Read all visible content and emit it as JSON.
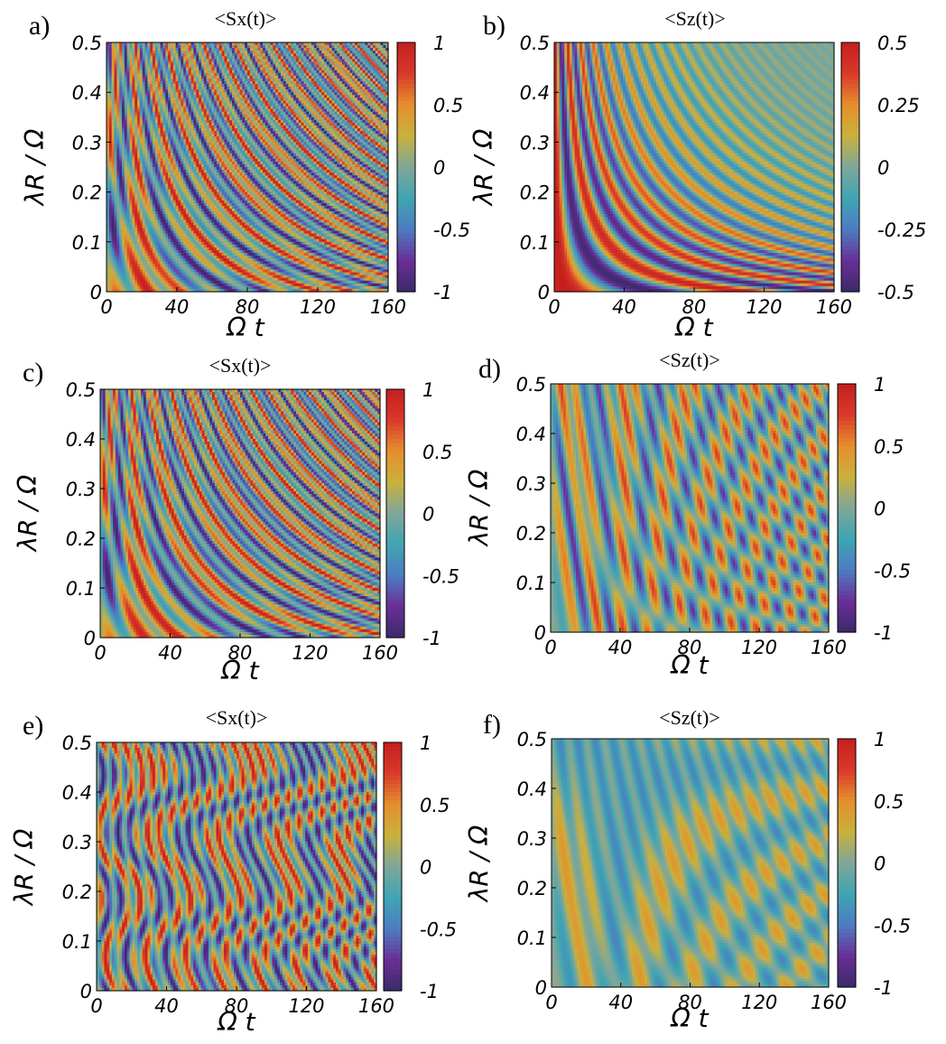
{
  "colormap": [
    "#3a2a6b",
    "#6a2f96",
    "#4d7cc2",
    "#3fa5b2",
    "#7fa69a",
    "#c9b13c",
    "#e58f2d",
    "#d93a2a",
    "#c41f1f"
  ],
  "chart_data": [
    {
      "id": "a",
      "type": "heatmap",
      "panel_letter": "a)",
      "title": "<Sx(t)>",
      "xlabel": "Ω t",
      "ylabel": "λR / Ω",
      "xlim": [
        0,
        160
      ],
      "ylim": [
        0,
        0.5
      ],
      "x_ticks": [
        "0",
        "40",
        "80",
        "120",
        "160"
      ],
      "y_ticks": [
        "0",
        "0.1",
        "0.2",
        "0.3",
        "0.4",
        "0.5"
      ],
      "colorbar_range": [
        -1,
        1
      ],
      "colorbar_ticks": [
        "1",
        "0.5",
        "0",
        "-0.5",
        "-1"
      ],
      "pattern": "fringe",
      "fringe_freq": 0.35
    },
    {
      "id": "b",
      "type": "heatmap",
      "panel_letter": "b)",
      "title": "<Sz(t)>",
      "xlabel": "Ω t",
      "ylabel": "λR / Ω",
      "xlim": [
        0,
        160
      ],
      "ylim": [
        0,
        0.5
      ],
      "x_ticks": [
        "0",
        "40",
        "80",
        "120",
        "160"
      ],
      "y_ticks": [
        "0",
        "0.1",
        "0.2",
        "0.3",
        "0.4",
        "0.5"
      ],
      "colorbar_range": [
        -0.5,
        0.5
      ],
      "colorbar_ticks": [
        "0.5",
        "0.25",
        "0",
        "-0.25",
        "-0.5"
      ],
      "pattern": "hyperbolic",
      "fringe_freq": 1.0
    },
    {
      "id": "c",
      "type": "heatmap",
      "panel_letter": "c)",
      "title": "<Sx(t)>",
      "xlabel": "Ω t",
      "ylabel": "λR / Ω",
      "xlim": [
        0,
        160
      ],
      "ylim": [
        0,
        0.5
      ],
      "x_ticks": [
        "0",
        "40",
        "80",
        "120",
        "160"
      ],
      "y_ticks": [
        "0",
        "0.1",
        "0.2",
        "0.3",
        "0.4",
        "0.5"
      ],
      "colorbar_range": [
        -1,
        1
      ],
      "colorbar_ticks": [
        "1",
        "0.5",
        "0",
        "-0.5",
        "-1"
      ],
      "pattern": "fringe",
      "fringe_freq": 0.32
    },
    {
      "id": "d",
      "type": "heatmap",
      "panel_letter": "d)",
      "title": "<Sz(t)>",
      "xlabel": "Ω t",
      "ylabel": "λR / Ω",
      "xlim": [
        0,
        160
      ],
      "ylim": [
        0,
        0.5
      ],
      "x_ticks": [
        "0",
        "40",
        "80",
        "120",
        "160"
      ],
      "y_ticks": [
        "0",
        "0.1",
        "0.2",
        "0.3",
        "0.4",
        "0.5"
      ],
      "colorbar_range": [
        -1,
        1
      ],
      "colorbar_ticks": [
        "1",
        "0.5",
        "0",
        "-0.5",
        "-1"
      ],
      "pattern": "hyperbolic_fringe",
      "fringe_freq": 0.45
    },
    {
      "id": "e",
      "type": "heatmap",
      "panel_letter": "e)",
      "title": "<Sx(t)>",
      "xlabel": "Ω t",
      "ylabel": "λR / Ω",
      "xlim": [
        0,
        160
      ],
      "ylim": [
        0,
        0.5
      ],
      "x_ticks": [
        "0",
        "40",
        "80",
        "120",
        "160"
      ],
      "y_ticks": [
        "0",
        "0.1",
        "0.2",
        "0.3",
        "0.4",
        "0.5"
      ],
      "colorbar_range": [
        -1,
        1
      ],
      "colorbar_ticks": [
        "1",
        "0.5",
        "0",
        "-0.5",
        "-1"
      ],
      "pattern": "irregular",
      "fringe_freq": 0.3
    },
    {
      "id": "f",
      "type": "heatmap",
      "panel_letter": "f)",
      "title": "<Sz(t)>",
      "xlabel": "Ω t",
      "ylabel": "λR / Ω",
      "xlim": [
        0,
        160
      ],
      "ylim": [
        0,
        0.5
      ],
      "x_ticks": [
        "0",
        "40",
        "80",
        "120",
        "160"
      ],
      "y_ticks": [
        "0",
        "0.1",
        "0.2",
        "0.3",
        "0.4",
        "0.5"
      ],
      "colorbar_range": [
        -1,
        1
      ],
      "colorbar_ticks": [
        "1",
        "0.5",
        "0",
        "-0.5",
        "-1"
      ],
      "pattern": "faint_fringe",
      "fringe_freq": 0.4
    }
  ]
}
